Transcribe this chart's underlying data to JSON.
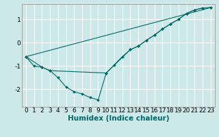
{
  "xlabel": "Humidex (Indice chaleur)",
  "bg_color": "#cce8e8",
  "line_color": "#006868",
  "grid_color": "#ffffff",
  "xlim": [
    -0.5,
    23.5
  ],
  "ylim": [
    -2.75,
    1.65
  ],
  "x_ticks": [
    0,
    1,
    2,
    3,
    4,
    5,
    6,
    7,
    8,
    9,
    10,
    11,
    12,
    13,
    14,
    15,
    16,
    17,
    18,
    19,
    20,
    21,
    22,
    23
  ],
  "y_ticks": [
    -2,
    -1,
    0,
    1
  ],
  "line1_x": [
    0,
    1,
    2,
    3,
    4,
    5,
    6,
    7,
    8,
    9,
    10,
    11,
    12,
    13,
    14,
    15,
    16,
    17,
    18,
    19,
    20,
    21,
    22,
    23
  ],
  "line1_y": [
    -0.6,
    -1.0,
    -1.05,
    -1.2,
    -1.5,
    -1.9,
    -2.1,
    -2.2,
    -2.35,
    -2.45,
    -1.3,
    -0.95,
    -0.6,
    -0.3,
    -0.15,
    0.1,
    0.32,
    0.58,
    0.8,
    1.0,
    1.25,
    1.4,
    1.48,
    1.5
  ],
  "line2_x": [
    0,
    2,
    3,
    10,
    13,
    14,
    15,
    16,
    17,
    18,
    19,
    20,
    21,
    22,
    23
  ],
  "line2_y": [
    -0.6,
    -1.05,
    -1.2,
    -1.3,
    -0.3,
    -0.15,
    0.1,
    0.32,
    0.58,
    0.8,
    1.0,
    1.25,
    1.4,
    1.48,
    1.5
  ],
  "line3_x": [
    0,
    23
  ],
  "line3_y": [
    -0.6,
    1.5
  ],
  "xlabel_fontsize": 7.5,
  "tick_fontsize": 6.5
}
